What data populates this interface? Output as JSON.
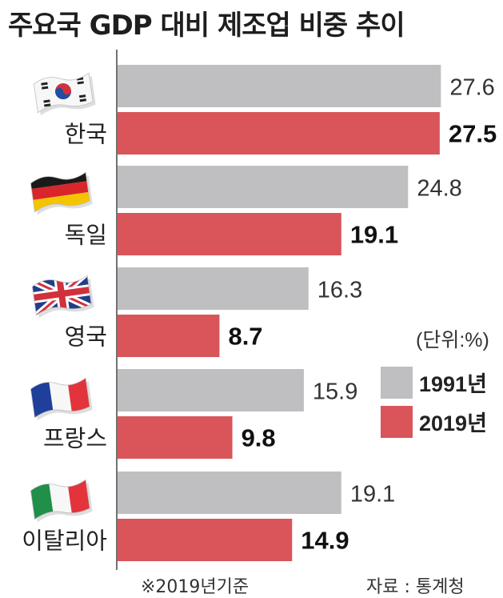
{
  "chart_data": {
    "type": "bar",
    "orientation": "horizontal",
    "title": "주요국 GDP 대비 제조업 비중 추이",
    "categories": [
      "한국",
      "독일",
      "영국",
      "프랑스",
      "이탈리아"
    ],
    "series": [
      {
        "name": "1991년",
        "values": [
          27.6,
          24.8,
          16.3,
          15.9,
          19.1
        ]
      },
      {
        "name": "2019년",
        "values": [
          27.5,
          19.1,
          8.7,
          9.8,
          14.9
        ]
      }
    ],
    "unit_label": "(단위:%)",
    "legend_position": "right",
    "grid": false
  },
  "colors": {
    "1991": "#bfbfc1",
    "2019": "#d9555a"
  },
  "flags": [
    "kr-flag-icon",
    "de-flag-icon",
    "gb-flag-icon",
    "fr-flag-icon",
    "it-flag-icon"
  ],
  "footer": {
    "note": "※2019년기준",
    "source": "자료 : 통계청"
  }
}
